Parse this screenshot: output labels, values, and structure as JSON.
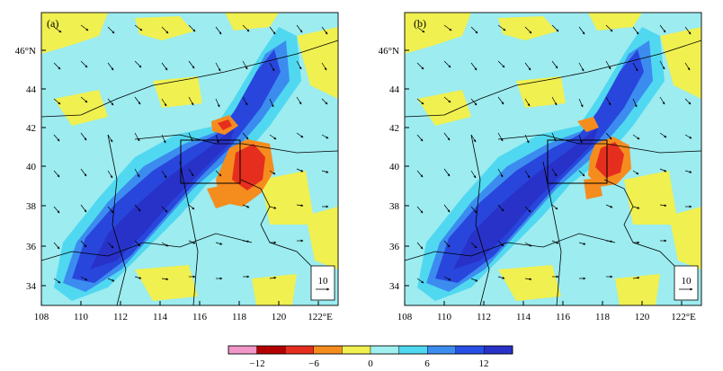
{
  "panels": [
    {
      "id": "a",
      "label": "(a)",
      "lat_ticks": [
        "34",
        "36",
        "38",
        "40",
        "42",
        "44",
        "46°N"
      ],
      "lon_ticks": [
        "108",
        "110",
        "112",
        "114",
        "116",
        "118",
        "120",
        "122°E"
      ],
      "reference_vector": {
        "value": "10"
      }
    },
    {
      "id": "b",
      "label": "(b)",
      "lat_ticks": [
        "34",
        "36",
        "38",
        "40",
        "42",
        "44",
        "46°N"
      ],
      "lon_ticks": [
        "108",
        "110",
        "112",
        "114",
        "116",
        "118",
        "120",
        "122°E"
      ],
      "reference_vector": {
        "value": "10"
      }
    }
  ],
  "colorbar": {
    "colors": [
      "#f096c8",
      "#b40000",
      "#e62e1e",
      "#f58c1e",
      "#f0f050",
      "#a0f0f0",
      "#50d8f0",
      "#3c8cf0",
      "#2850e6",
      "#2832c8"
    ],
    "tick_labels": [
      "−12",
      "−6",
      "0",
      "6",
      "12"
    ]
  },
  "colors": {
    "background_field": "#9cecf0",
    "land_positive": "#f0f050",
    "strong_negative": "#2846dc",
    "medium_negative": "#3c8cf0",
    "strong_positive": "#f07828",
    "extreme_positive": "#e62e1e"
  }
}
